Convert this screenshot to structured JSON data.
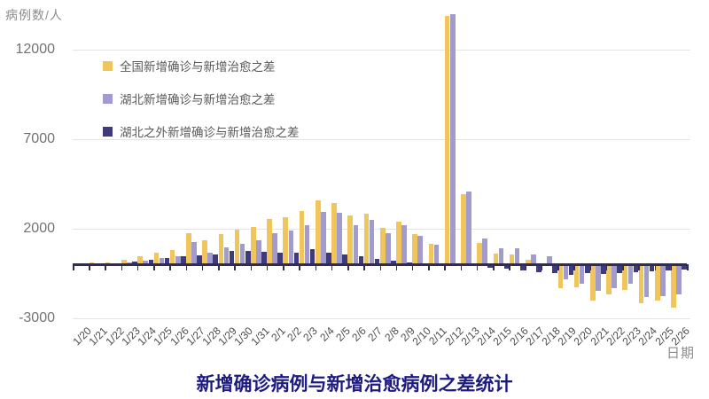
{
  "chart_data": {
    "type": "bar",
    "title": "新增确诊病例与新增治愈病例之差统计",
    "ylabel": "病例数/人",
    "xlabel": "日期",
    "yticks": [
      12000,
      7000,
      2000,
      -3000
    ],
    "ylim": [
      -3500,
      14500
    ],
    "grid": true,
    "legend_position": "top-left-inside",
    "categories": [
      "1/20",
      "1/21",
      "1/22",
      "1/23",
      "1/24",
      "1/25",
      "1/26",
      "1/27",
      "1/28",
      "1/29",
      "1/30",
      "1/31",
      "2/1",
      "2/2",
      "2/3",
      "2/4",
      "2/5",
      "2/6",
      "2/7",
      "2/8",
      "2/9",
      "2/10",
      "2/11",
      "2/12",
      "2/13",
      "2/14",
      "2/15",
      "2/16",
      "2/17",
      "2/18",
      "2/19",
      "2/20",
      "2/21",
      "2/22",
      "2/23",
      "2/24",
      "2/25",
      "2/26"
    ],
    "series": [
      {
        "key": "national",
        "name": "全国新增确诊与新增治愈之差",
        "color": "#F0C65C",
        "values": [
          70,
          130,
          110,
          280,
          470,
          670,
          830,
          1760,
          1380,
          1680,
          1950,
          2080,
          2530,
          2640,
          3010,
          3570,
          3440,
          2740,
          2850,
          2050,
          2390,
          1720,
          1180,
          13900,
          3940,
          1215,
          610,
          540,
          285,
          -80,
          -1340,
          -1250,
          -2000,
          -1670,
          -1420,
          -2170,
          -2000,
          -2420
        ]
      },
      {
        "key": "hubei",
        "name": "湖北新增确诊与新增治愈之差",
        "color": "#A29BCE",
        "values": [
          50,
          80,
          60,
          130,
          225,
          350,
          480,
          1250,
          680,
          960,
          1150,
          1360,
          1760,
          1920,
          2190,
          2960,
          2880,
          2200,
          2490,
          1750,
          2200,
          1610,
          1130,
          14000,
          4100,
          1445,
          935,
          920,
          570,
          450,
          -800,
          -1085,
          -1470,
          -1335,
          -1085,
          -1835,
          -1750,
          -1670
        ]
      },
      {
        "key": "outside-hubei",
        "name": "湖北之外新增确诊与新增治愈之差",
        "color": "#3E3A7B",
        "values": [
          30,
          65,
          65,
          160,
          260,
          350,
          450,
          520,
          560,
          760,
          770,
          720,
          640,
          670,
          880,
          650,
          560,
          475,
          310,
          200,
          130,
          65,
          -30,
          -50,
          -80,
          -165,
          -250,
          -350,
          -435,
          -500,
          -585,
          -470,
          -535,
          -500,
          -420,
          -370,
          -330,
          -300
        ]
      }
    ]
  },
  "colors": {
    "background": "#FFFFFF",
    "axis": "#2F2D55",
    "grid": "#E4E4E4",
    "y_tick_label": "#737373",
    "x_tick_label": "#4D4D4D",
    "axis_title": "#8C8C8C",
    "legend_text": "#595959",
    "title": "#1E1B80"
  }
}
